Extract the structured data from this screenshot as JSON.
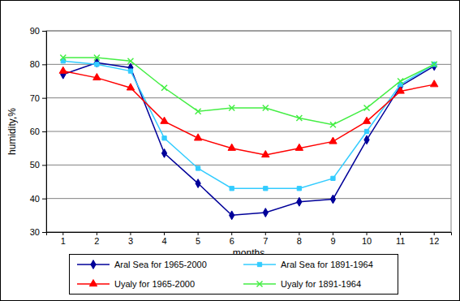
{
  "chart_data": {
    "type": "line",
    "x_label": "months",
    "y_label": "humidity,%",
    "categories": [
      "1",
      "2",
      "3",
      "4",
      "5",
      "6",
      "7",
      "8",
      "9",
      "10",
      "11",
      "12"
    ],
    "series": [
      {
        "name": "Aral Sea for 1965-2000",
        "color": "#000099",
        "marker": "diamond",
        "line_style": "solid",
        "values": [
          77,
          80.5,
          79,
          53.5,
          44.5,
          35,
          35.8,
          39,
          39.8,
          57.5,
          73.5,
          79.5
        ]
      },
      {
        "name": "Aral Sea for 1891-1964",
        "color": "#33ccff",
        "marker": "square",
        "line_style": "solid",
        "values": [
          81,
          80,
          78,
          58,
          49,
          43,
          43,
          43,
          46,
          60,
          74,
          80
        ]
      },
      {
        "name": "Uyaly for 1965-2000",
        "color": "#ff0000",
        "marker": "triangle",
        "line_style": "solid",
        "values": [
          78,
          76,
          73,
          63,
          58,
          55,
          53,
          55,
          57,
          63,
          72,
          74
        ]
      },
      {
        "name": "Uyaly for 1891-1964",
        "color": "#44ee44",
        "marker": "x",
        "line_style": "solid",
        "values": [
          82,
          82,
          81,
          73,
          66,
          67,
          67,
          64,
          62,
          67,
          75,
          80
        ]
      }
    ],
    "ylim": [
      30,
      90
    ],
    "yticks": [
      30,
      40,
      50,
      60,
      70,
      80,
      90
    ],
    "grid": true,
    "legend": "bottom"
  }
}
